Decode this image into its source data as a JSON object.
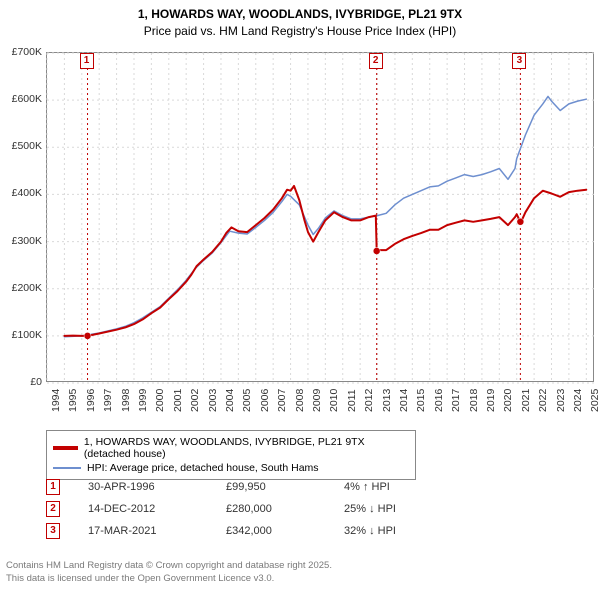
{
  "title_line1": "1, HOWARDS WAY, WOODLANDS, IVYBRIDGE, PL21 9TX",
  "title_line2": "Price paid vs. HM Land Registry's House Price Index (HPI)",
  "chart": {
    "type": "line",
    "background_color": "#ffffff",
    "grid_color": "#d9d9d9",
    "border_color": "#888888",
    "x_years": [
      1994,
      1995,
      1996,
      1997,
      1998,
      1999,
      2000,
      2001,
      2002,
      2003,
      2004,
      2005,
      2006,
      2007,
      2008,
      2009,
      2010,
      2011,
      2012,
      2013,
      2014,
      2015,
      2016,
      2017,
      2018,
      2019,
      2020,
      2021,
      2022,
      2023,
      2024,
      2025
    ],
    "xlim": [
      1994,
      2025.5
    ],
    "ylim": [
      0,
      700000
    ],
    "ytick_step": 100000,
    "ytick_labels": [
      "£0",
      "£100K",
      "£200K",
      "£300K",
      "£400K",
      "£500K",
      "£600K",
      "£700K"
    ],
    "label_fontsize": 10.5,
    "series": [
      {
        "name": "price_paid",
        "label": "1, HOWARDS WAY, WOODLANDS, IVYBRIDGE, PL21 9TX (detached house)",
        "color": "#c30000",
        "line_width": 2,
        "points_xy": [
          [
            1995,
            100000
          ],
          [
            1995.5,
            100500
          ],
          [
            1996,
            100000
          ],
          [
            1996.33,
            99950
          ],
          [
            1997,
            105000
          ],
          [
            1998,
            113000
          ],
          [
            1998.5,
            118000
          ],
          [
            1999,
            125000
          ],
          [
            1999.5,
            135000
          ],
          [
            2000,
            148000
          ],
          [
            2000.5,
            160000
          ],
          [
            2001,
            178000
          ],
          [
            2001.5,
            195000
          ],
          [
            2002,
            215000
          ],
          [
            2002.3,
            230000
          ],
          [
            2002.6,
            248000
          ],
          [
            2003,
            262000
          ],
          [
            2003.5,
            278000
          ],
          [
            2004,
            300000
          ],
          [
            2004.3,
            318000
          ],
          [
            2004.6,
            330000
          ],
          [
            2005,
            322000
          ],
          [
            2005.5,
            320000
          ],
          [
            2006,
            335000
          ],
          [
            2006.5,
            350000
          ],
          [
            2007,
            368000
          ],
          [
            2007.5,
            392000
          ],
          [
            2007.8,
            410000
          ],
          [
            2008,
            408000
          ],
          [
            2008.2,
            418000
          ],
          [
            2008.5,
            388000
          ],
          [
            2008.8,
            345000
          ],
          [
            2009,
            320000
          ],
          [
            2009.3,
            300000
          ],
          [
            2009.6,
            320000
          ],
          [
            2010,
            345000
          ],
          [
            2010.5,
            362000
          ],
          [
            2011,
            352000
          ],
          [
            2011.5,
            345000
          ],
          [
            2012,
            345000
          ],
          [
            2012.5,
            352000
          ],
          [
            2012.9,
            355000
          ],
          [
            2012.95,
            280000
          ],
          [
            2013,
            282000
          ],
          [
            2013.5,
            282000
          ],
          [
            2014,
            295000
          ],
          [
            2014.5,
            305000
          ],
          [
            2015,
            312000
          ],
          [
            2015.5,
            318000
          ],
          [
            2016,
            325000
          ],
          [
            2016.5,
            325000
          ],
          [
            2017,
            335000
          ],
          [
            2017.5,
            340000
          ],
          [
            2018,
            345000
          ],
          [
            2018.5,
            342000
          ],
          [
            2019,
            345000
          ],
          [
            2019.5,
            348000
          ],
          [
            2020,
            352000
          ],
          [
            2020.5,
            335000
          ],
          [
            2020.9,
            352000
          ],
          [
            2021,
            358000
          ],
          [
            2021.2,
            342000
          ],
          [
            2021.25,
            342000
          ],
          [
            2021.5,
            362000
          ],
          [
            2022,
            392000
          ],
          [
            2022.5,
            408000
          ],
          [
            2023,
            402000
          ],
          [
            2023.5,
            395000
          ],
          [
            2024,
            405000
          ],
          [
            2024.5,
            408000
          ],
          [
            2025,
            410000
          ]
        ]
      },
      {
        "name": "hpi",
        "label": "HPI: Average price, detached house, South Hams",
        "color": "#6e8fcf",
        "line_width": 1.5,
        "points_xy": [
          [
            1995,
            98000
          ],
          [
            1996,
            100000
          ],
          [
            1997,
            106000
          ],
          [
            1998,
            115000
          ],
          [
            1998.5,
            120000
          ],
          [
            1999,
            128000
          ],
          [
            1999.5,
            138000
          ],
          [
            2000,
            150000
          ],
          [
            2000.5,
            162000
          ],
          [
            2001,
            180000
          ],
          [
            2001.5,
            198000
          ],
          [
            2002,
            218000
          ],
          [
            2002.5,
            242000
          ],
          [
            2003,
            260000
          ],
          [
            2003.5,
            276000
          ],
          [
            2004,
            298000
          ],
          [
            2004.5,
            322000
          ],
          [
            2005,
            318000
          ],
          [
            2005.5,
            316000
          ],
          [
            2006,
            330000
          ],
          [
            2006.5,
            345000
          ],
          [
            2007,
            362000
          ],
          [
            2007.5,
            385000
          ],
          [
            2007.8,
            400000
          ],
          [
            2008,
            396000
          ],
          [
            2008.5,
            378000
          ],
          [
            2009,
            335000
          ],
          [
            2009.3,
            315000
          ],
          [
            2009.6,
            328000
          ],
          [
            2010,
            350000
          ],
          [
            2010.5,
            365000
          ],
          [
            2011,
            355000
          ],
          [
            2011.5,
            348000
          ],
          [
            2012,
            348000
          ],
          [
            2012.5,
            352000
          ],
          [
            2013,
            355000
          ],
          [
            2013.5,
            360000
          ],
          [
            2014,
            378000
          ],
          [
            2014.5,
            392000
          ],
          [
            2015,
            400000
          ],
          [
            2015.5,
            408000
          ],
          [
            2016,
            416000
          ],
          [
            2016.5,
            418000
          ],
          [
            2017,
            428000
          ],
          [
            2017.5,
            435000
          ],
          [
            2018,
            442000
          ],
          [
            2018.5,
            438000
          ],
          [
            2019,
            442000
          ],
          [
            2019.5,
            448000
          ],
          [
            2020,
            455000
          ],
          [
            2020.5,
            432000
          ],
          [
            2020.9,
            455000
          ],
          [
            2021,
            476000
          ],
          [
            2021.5,
            526000
          ],
          [
            2022,
            568000
          ],
          [
            2022.5,
            592000
          ],
          [
            2022.8,
            608000
          ],
          [
            2023,
            598000
          ],
          [
            2023.5,
            578000
          ],
          [
            2024,
            592000
          ],
          [
            2024.5,
            598000
          ],
          [
            2025,
            602000
          ]
        ]
      }
    ],
    "markers": [
      {
        "id": "1",
        "x": 1996.33,
        "sale": {
          "date": "30-APR-1996",
          "price": "£99,950",
          "pct": "4% ↑ HPI"
        },
        "dot_y": 99950
      },
      {
        "id": "2",
        "x": 2012.95,
        "sale": {
          "date": "14-DEC-2012",
          "price": "£280,000",
          "pct": "25% ↓ HPI"
        },
        "dot_y": 280000
      },
      {
        "id": "3",
        "x": 2021.21,
        "sale": {
          "date": "17-MAR-2021",
          "price": "£342,000",
          "pct": "32% ↓ HPI"
        },
        "dot_y": 342000
      }
    ]
  },
  "legend": {
    "items": [
      {
        "color": "#c30000",
        "label": "1, HOWARDS WAY, WOODLANDS, IVYBRIDGE, PL21 9TX (detached house)"
      },
      {
        "color": "#6e8fcf",
        "label": "HPI: Average price, detached house, South Hams"
      }
    ]
  },
  "footer": {
    "line1": "Contains HM Land Registry data © Crown copyright and database right 2025.",
    "line2": "This data is licensed under the Open Government Licence v3.0."
  }
}
